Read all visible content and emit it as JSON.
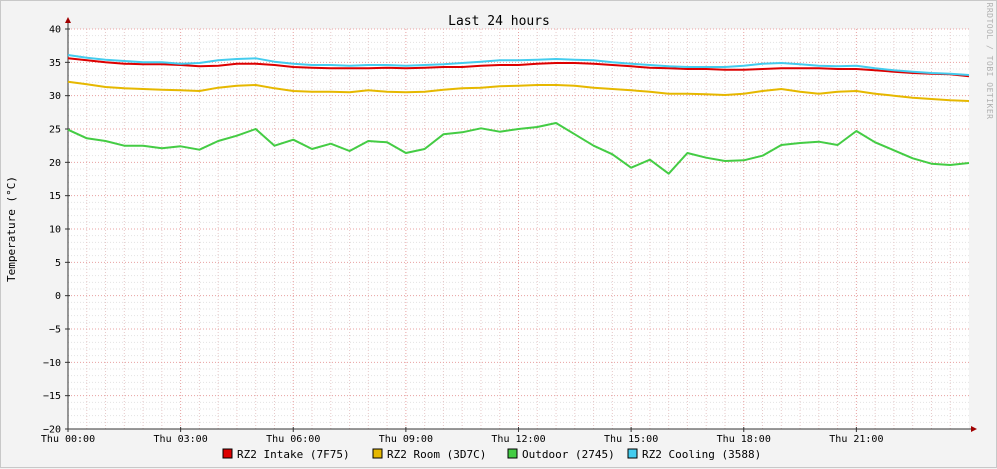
{
  "chart_data": {
    "type": "line",
    "title": "Last 24 hours",
    "ylabel": "Temperature (°C)",
    "watermark": "RRDTOOL / TOBI OETIKER",
    "ylim": [
      -20,
      40
    ],
    "ytick_values": [
      -20,
      -15,
      -10,
      -5,
      0,
      5,
      10,
      15,
      20,
      25,
      30,
      35,
      40
    ],
    "ytick_labels": [
      "−20",
      "−15",
      "−10",
      "−5",
      "0",
      "5",
      "10",
      "15",
      "20",
      "25",
      "30",
      "35",
      "40"
    ],
    "xlim": [
      0,
      24
    ],
    "xtick_values": [
      0,
      3,
      6,
      9,
      12,
      15,
      18,
      21
    ],
    "xtick_labels": [
      "Thu 00:00",
      "Thu 03:00",
      "Thu 06:00",
      "Thu 09:00",
      "Thu 12:00",
      "Thu 15:00",
      "Thu 18:00",
      "Thu 21:00"
    ],
    "grid": true,
    "legend_position": "bottom",
    "series": [
      {
        "name": "RZ2 Intake (7F75)",
        "color": "#dd0000",
        "x": [
          0,
          0.5,
          1,
          1.5,
          2,
          2.5,
          3,
          3.5,
          4,
          4.5,
          5,
          5.5,
          6,
          6.5,
          7,
          7.5,
          8,
          8.5,
          9,
          9.5,
          10,
          10.5,
          11,
          11.5,
          12,
          12.5,
          13,
          13.5,
          14,
          14.5,
          15,
          15.5,
          16,
          16.5,
          17,
          17.5,
          18,
          18.5,
          19,
          19.5,
          20,
          20.5,
          21,
          21.5,
          22,
          22.5,
          23,
          23.5,
          24
        ],
        "y": [
          35.6,
          35.3,
          35.0,
          34.8,
          34.7,
          34.7,
          34.6,
          34.4,
          34.5,
          34.8,
          34.8,
          34.6,
          34.3,
          34.2,
          34.1,
          34.1,
          34.1,
          34.2,
          34.1,
          34.2,
          34.3,
          34.3,
          34.5,
          34.6,
          34.6,
          34.8,
          34.9,
          34.9,
          34.8,
          34.6,
          34.4,
          34.2,
          34.1,
          34.0,
          34.0,
          33.9,
          33.9,
          34.0,
          34.1,
          34.1,
          34.1,
          34.0,
          34.0,
          33.8,
          33.6,
          33.4,
          33.3,
          33.2,
          32.9
        ]
      },
      {
        "name": "RZ2 Room (3D7C)",
        "color": "#e6b800",
        "x": [
          0,
          0.5,
          1,
          1.5,
          2,
          2.5,
          3,
          3.5,
          4,
          4.5,
          5,
          5.5,
          6,
          6.5,
          7,
          7.5,
          8,
          8.5,
          9,
          9.5,
          10,
          10.5,
          11,
          11.5,
          12,
          12.5,
          13,
          13.5,
          14,
          14.5,
          15,
          15.5,
          16,
          16.5,
          17,
          17.5,
          18,
          18.5,
          19,
          19.5,
          20,
          20.5,
          21,
          21.5,
          22,
          22.5,
          23,
          23.5,
          24
        ],
        "y": [
          32.1,
          31.7,
          31.3,
          31.1,
          31.0,
          30.9,
          30.8,
          30.7,
          31.2,
          31.5,
          31.6,
          31.1,
          30.7,
          30.6,
          30.6,
          30.5,
          30.8,
          30.6,
          30.5,
          30.6,
          30.9,
          31.1,
          31.2,
          31.4,
          31.5,
          31.6,
          31.6,
          31.5,
          31.2,
          31.0,
          30.8,
          30.6,
          30.3,
          30.3,
          30.2,
          30.1,
          30.3,
          30.7,
          31.0,
          30.6,
          30.3,
          30.6,
          30.7,
          30.3,
          30.0,
          29.7,
          29.5,
          29.3,
          29.2
        ]
      },
      {
        "name": "Outdoor (2745)",
        "color": "#44cc44",
        "x": [
          0,
          0.5,
          1,
          1.5,
          2,
          2.5,
          3,
          3.5,
          4,
          4.5,
          5,
          5.5,
          6,
          6.5,
          7,
          7.5,
          8,
          8.5,
          9,
          9.5,
          10,
          10.5,
          11,
          11.5,
          12,
          12.5,
          13,
          13.5,
          14,
          14.5,
          15,
          15.5,
          16,
          16.5,
          17,
          17.5,
          18,
          18.5,
          19,
          19.5,
          20,
          20.5,
          21,
          21.5,
          22,
          22.5,
          23,
          23.5,
          24
        ],
        "y": [
          24.9,
          23.6,
          23.2,
          22.5,
          22.5,
          22.1,
          22.4,
          21.9,
          23.2,
          24.0,
          25.0,
          22.5,
          23.4,
          22.0,
          22.8,
          21.7,
          23.2,
          23.0,
          21.4,
          22.0,
          24.2,
          24.5,
          25.1,
          24.6,
          25.0,
          25.3,
          25.9,
          24.2,
          22.5,
          21.2,
          19.2,
          20.4,
          18.3,
          21.4,
          20.7,
          20.2,
          20.3,
          21.0,
          22.6,
          22.9,
          23.1,
          22.6,
          24.7,
          23.0,
          21.8,
          20.6,
          19.8,
          19.6,
          19.9
        ]
      },
      {
        "name": "RZ2 Cooling (3588)",
        "color": "#44ccee",
        "x": [
          0,
          0.5,
          1,
          1.5,
          2,
          2.5,
          3,
          3.5,
          4,
          4.5,
          5,
          5.5,
          6,
          6.5,
          7,
          7.5,
          8,
          8.5,
          9,
          9.5,
          10,
          10.5,
          11,
          11.5,
          12,
          12.5,
          13,
          13.5,
          14,
          14.5,
          15,
          15.5,
          16,
          16.5,
          17,
          17.5,
          18,
          18.5,
          19,
          19.5,
          20,
          20.5,
          21,
          21.5,
          22,
          22.5,
          23,
          23.5,
          24
        ],
        "y": [
          36.1,
          35.7,
          35.4,
          35.2,
          35.0,
          35.0,
          34.8,
          34.9,
          35.3,
          35.5,
          35.6,
          35.1,
          34.8,
          34.6,
          34.6,
          34.5,
          34.6,
          34.6,
          34.5,
          34.6,
          34.7,
          34.9,
          35.1,
          35.3,
          35.3,
          35.4,
          35.5,
          35.4,
          35.3,
          35.0,
          34.8,
          34.6,
          34.4,
          34.3,
          34.3,
          34.3,
          34.5,
          34.8,
          34.9,
          34.7,
          34.5,
          34.4,
          34.5,
          34.1,
          33.8,
          33.6,
          33.4,
          33.3,
          33.1
        ]
      }
    ]
  }
}
